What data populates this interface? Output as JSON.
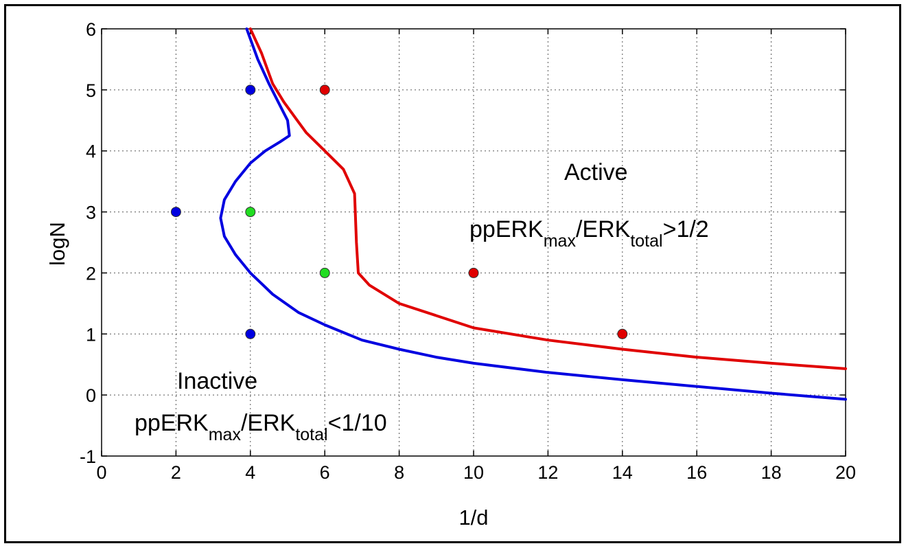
{
  "chart_data": {
    "type": "line",
    "xlabel": "1/d",
    "ylabel": "logN",
    "xlim": [
      0,
      20
    ],
    "ylim": [
      -1,
      6
    ],
    "x_ticks": [
      "0",
      "2",
      "4",
      "6",
      "8",
      "10",
      "12",
      "14",
      "16",
      "18",
      "20"
    ],
    "y_ticks": [
      "-1",
      "0",
      "1",
      "2",
      "3",
      "4",
      "5",
      "6"
    ],
    "grid": true,
    "series": [
      {
        "color": "#e00000",
        "x": [
          4.0,
          4.3,
          4.6,
          4.9,
          5.2,
          5.5,
          6.0,
          6.5,
          6.8,
          6.85,
          6.9,
          7.2,
          8.0,
          9.0,
          10.0,
          12.0,
          14.0,
          16.0,
          18.0,
          20.0
        ],
        "y": [
          6.0,
          5.6,
          5.1,
          4.8,
          4.55,
          4.3,
          4.0,
          3.7,
          3.3,
          2.5,
          2.0,
          1.8,
          1.5,
          1.3,
          1.1,
          0.9,
          0.75,
          0.62,
          0.52,
          0.43
        ]
      },
      {
        "color": "#0000e0",
        "x": [
          3.9,
          4.2,
          4.5,
          4.75,
          5.0,
          5.05,
          4.8,
          4.4,
          4.0,
          3.6,
          3.3,
          3.2,
          3.3,
          3.6,
          4.0,
          4.6,
          5.3,
          6.0,
          7.0,
          8.0,
          9.0,
          10.0,
          12.0,
          14.0,
          16.0,
          18.0,
          20.0
        ],
        "y": [
          6.0,
          5.5,
          5.1,
          4.8,
          4.5,
          4.25,
          4.15,
          4.0,
          3.8,
          3.5,
          3.2,
          2.9,
          2.6,
          2.3,
          2.0,
          1.65,
          1.35,
          1.15,
          0.9,
          0.75,
          0.62,
          0.52,
          0.37,
          0.25,
          0.14,
          0.03,
          -0.07
        ]
      }
    ],
    "points": [
      {
        "x": 4,
        "y": 5,
        "color": "#0000e0"
      },
      {
        "x": 6,
        "y": 5,
        "color": "#e00000"
      },
      {
        "x": 2,
        "y": 3,
        "color": "#0000e0"
      },
      {
        "x": 4,
        "y": 3,
        "color": "#22dd22"
      },
      {
        "x": 6,
        "y": 2,
        "color": "#22dd22"
      },
      {
        "x": 10,
        "y": 2,
        "color": "#e00000"
      },
      {
        "x": 4,
        "y": 1,
        "color": "#0000e0"
      },
      {
        "x": 14,
        "y": 1,
        "color": "#e00000"
      }
    ],
    "annotations": {
      "active_title": "Active",
      "active_formula": {
        "a": "ppERK",
        "a_sub": "max",
        "b": "/ERK",
        "b_sub": "total",
        "c": ">1/2"
      },
      "inactive_title": "Inactive",
      "inactive_formula": {
        "a": "ppERK",
        "a_sub": "max",
        "b": "/ERK",
        "b_sub": "total",
        "c": "<1/10"
      }
    }
  }
}
